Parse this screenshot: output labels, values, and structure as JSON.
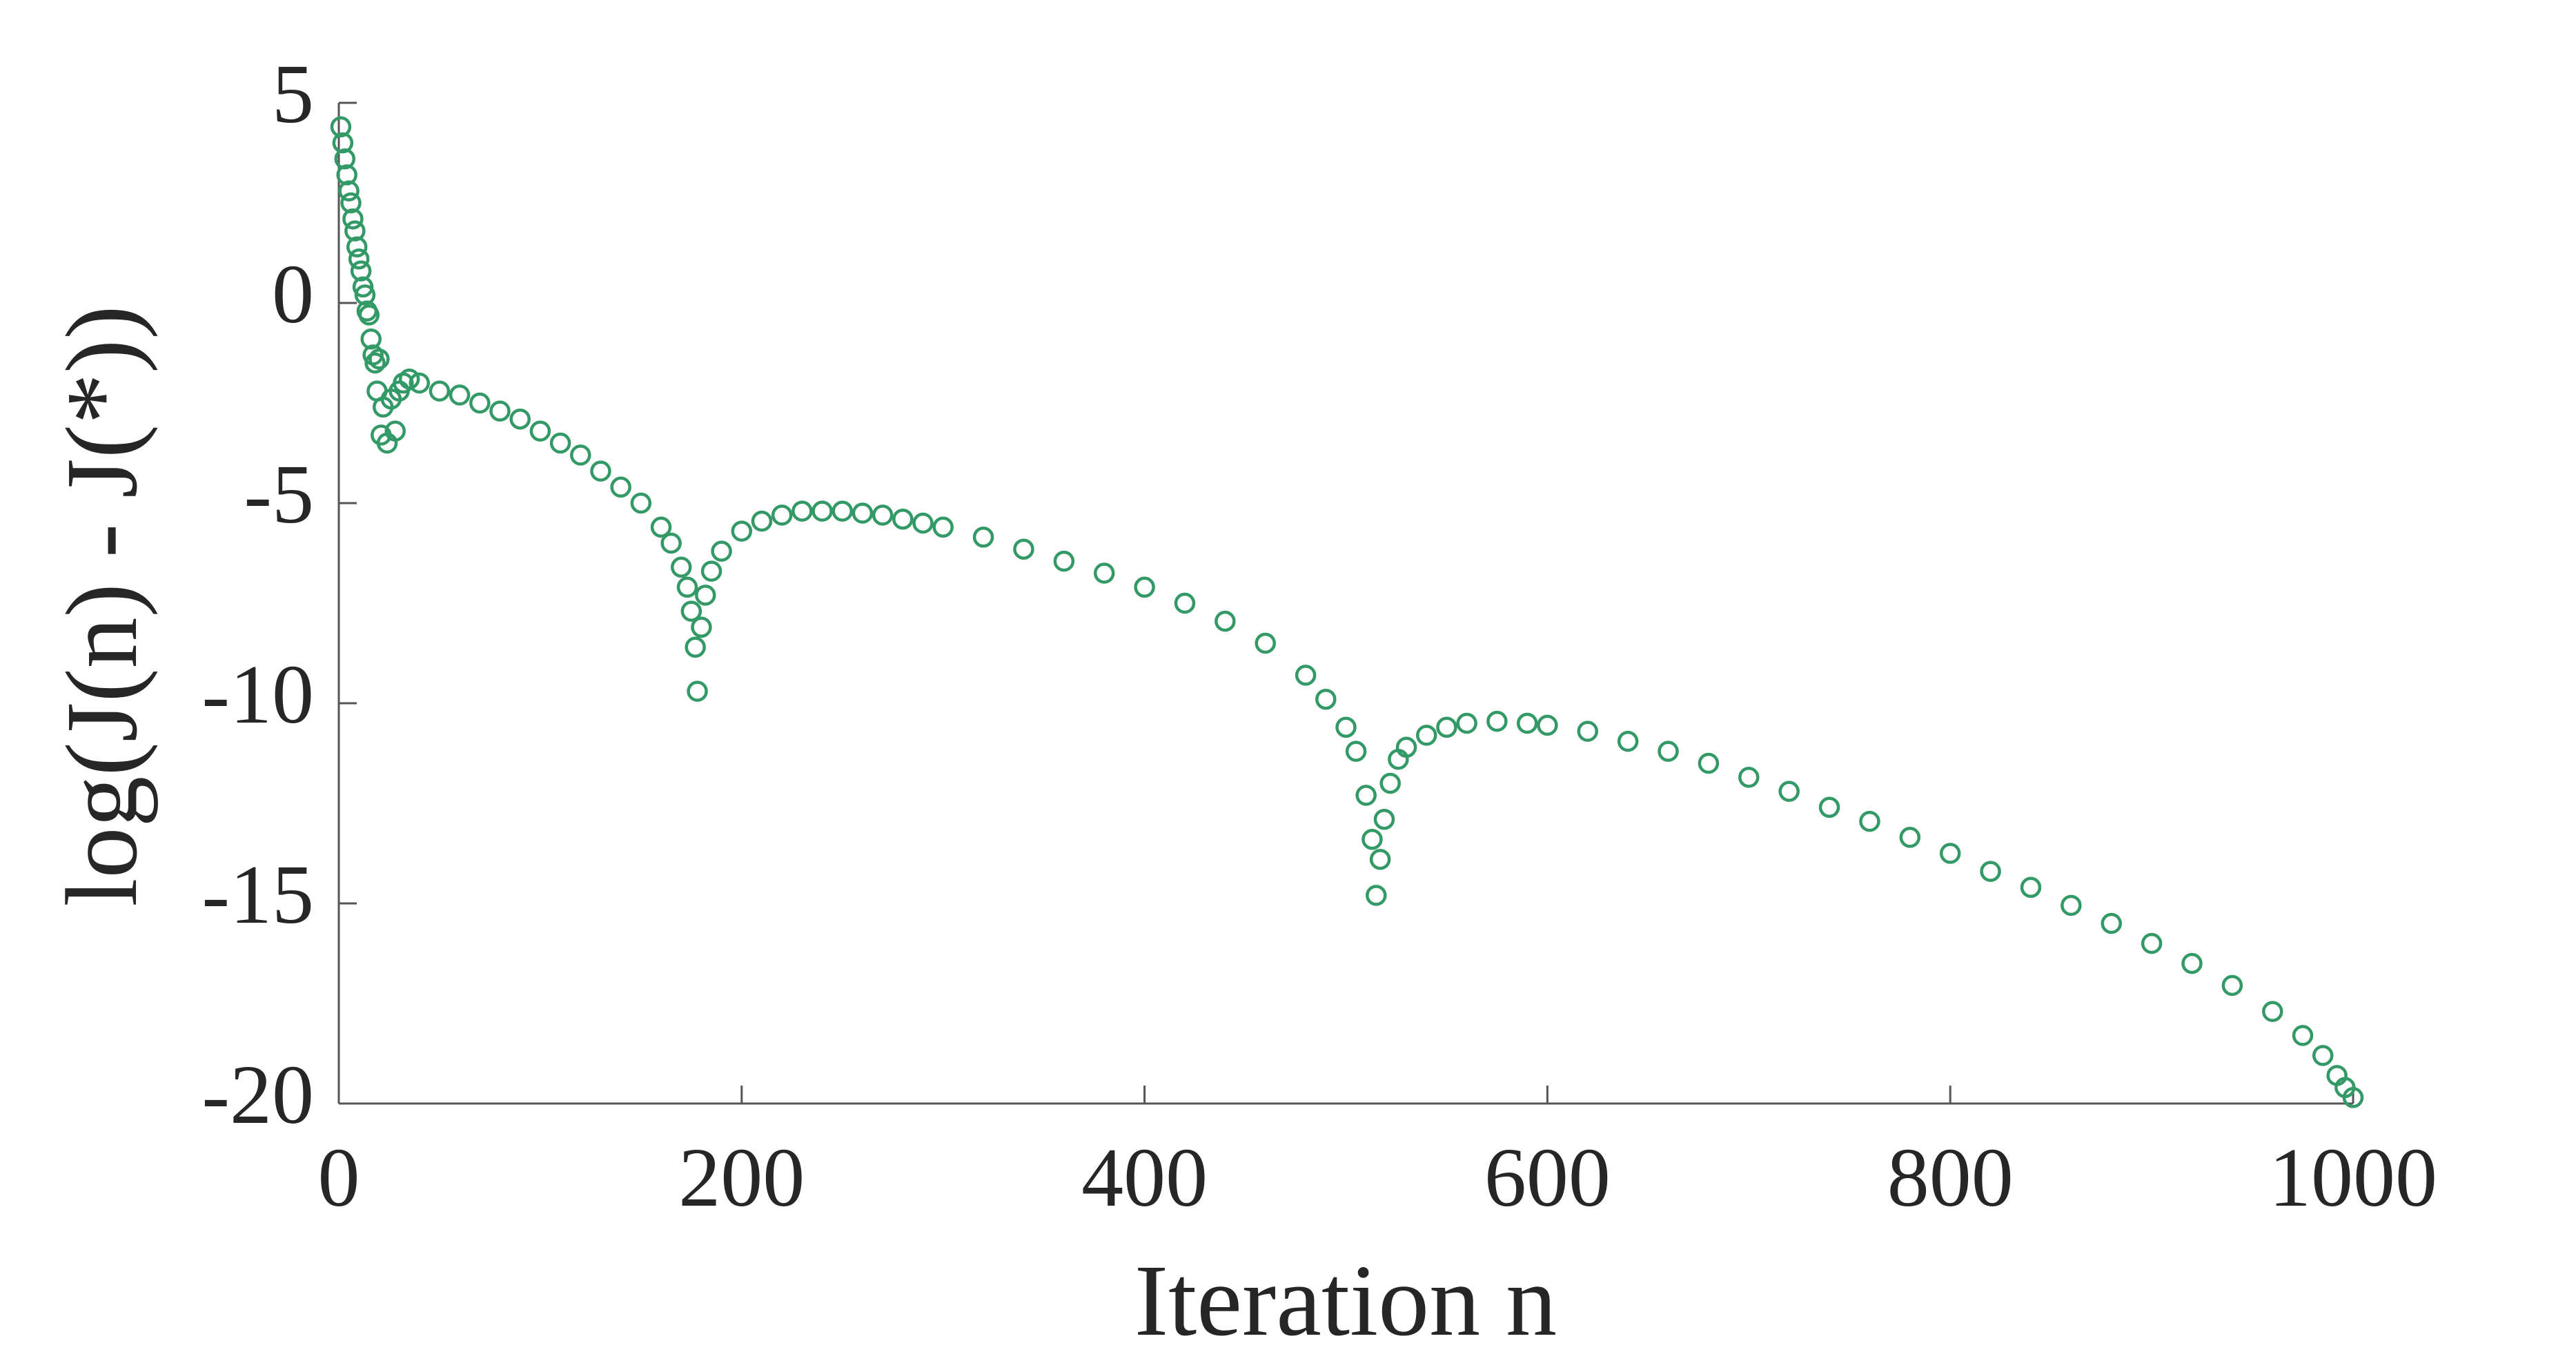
{
  "chart_data": {
    "type": "scatter",
    "xlabel": "Iteration n",
    "ylabel": "log(J(n) - J(*))",
    "xlim": [
      0,
      1000
    ],
    "xticks": [
      0,
      200,
      400,
      600,
      800,
      1000
    ],
    "ylim": [
      -20,
      5
    ],
    "yticks": [
      -20,
      -15,
      -10,
      -5,
      0,
      5
    ],
    "marker": "circle-open",
    "color": "#339966",
    "x": [
      1,
      2,
      3,
      4,
      5,
      6,
      7,
      8,
      9,
      10,
      11,
      12,
      13,
      14,
      15,
      16,
      17,
      18,
      19,
      20,
      21,
      22,
      24,
      26,
      28,
      30,
      32,
      35,
      40,
      50,
      60,
      70,
      80,
      90,
      100,
      110,
      120,
      130,
      140,
      150,
      160,
      165,
      170,
      173,
      175,
      177,
      178,
      180,
      182,
      185,
      190,
      200,
      210,
      220,
      230,
      240,
      250,
      260,
      270,
      280,
      290,
      300,
      320,
      340,
      360,
      380,
      400,
      420,
      440,
      460,
      480,
      490,
      500,
      505,
      510,
      513,
      515,
      517,
      519,
      522,
      526,
      530,
      540,
      550,
      560,
      575,
      590,
      600,
      620,
      640,
      660,
      680,
      700,
      720,
      740,
      760,
      780,
      800,
      820,
      840,
      860,
      880,
      900,
      920,
      940,
      960,
      975,
      985,
      992,
      996,
      1000
    ],
    "values": [
      4.4,
      4.0,
      3.6,
      3.2,
      2.8,
      2.5,
      2.1,
      1.8,
      1.4,
      1.1,
      0.8,
      0.4,
      0.2,
      -0.2,
      -0.3,
      -0.9,
      -1.3,
      -1.5,
      -2.2,
      -1.4,
      -3.3,
      -2.6,
      -3.5,
      -2.4,
      -3.2,
      -2.2,
      -2.0,
      -1.9,
      -2.0,
      -2.2,
      -2.3,
      -2.5,
      -2.7,
      -2.9,
      -3.2,
      -3.5,
      -3.8,
      -4.2,
      -4.6,
      -5.0,
      -5.6,
      -6.0,
      -6.6,
      -7.1,
      -7.7,
      -8.6,
      -9.7,
      -8.1,
      -7.3,
      -6.7,
      -6.2,
      -5.7,
      -5.45,
      -5.3,
      -5.2,
      -5.2,
      -5.2,
      -5.25,
      -5.3,
      -5.4,
      -5.5,
      -5.6,
      -5.85,
      -6.15,
      -6.45,
      -6.75,
      -7.1,
      -7.5,
      -7.95,
      -8.5,
      -9.3,
      -9.9,
      -10.6,
      -11.2,
      -12.3,
      -13.4,
      -14.8,
      -13.9,
      -12.9,
      -12.0,
      -11.4,
      -11.1,
      -10.8,
      -10.6,
      -10.5,
      -10.45,
      -10.5,
      -10.55,
      -10.7,
      -10.95,
      -11.2,
      -11.5,
      -11.85,
      -12.2,
      -12.6,
      -12.95,
      -13.35,
      -13.75,
      -14.2,
      -14.6,
      -15.05,
      -15.5,
      -16.0,
      -16.5,
      -17.05,
      -17.7,
      -18.3,
      -18.8,
      -19.3,
      -19.6,
      -19.85
    ]
  }
}
